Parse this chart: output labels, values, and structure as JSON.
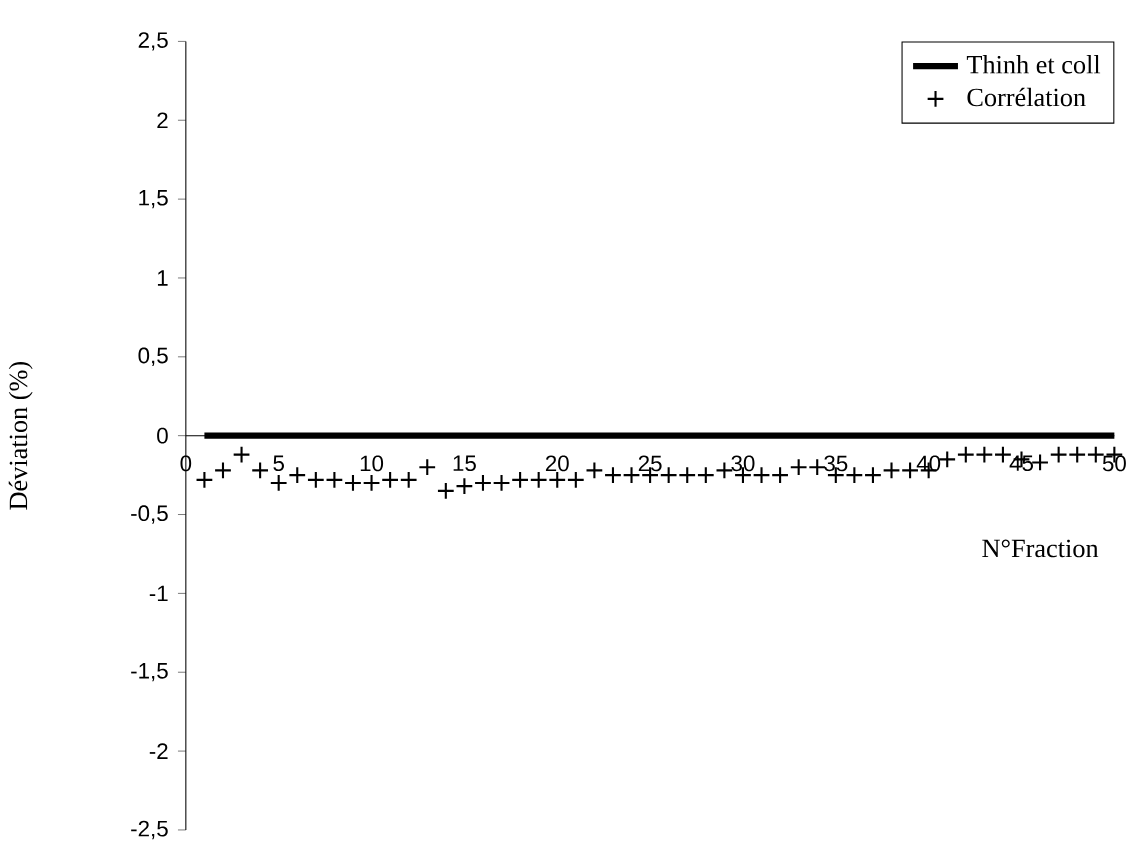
{
  "chart_data": {
    "type": "line",
    "xlabel": "N°Fraction",
    "ylabel": "Déviation (%)",
    "xlim": [
      0,
      50
    ],
    "ylim": [
      -2.5,
      2.5
    ],
    "xticks": [
      0,
      5,
      10,
      15,
      20,
      25,
      30,
      35,
      40,
      45,
      50
    ],
    "yticks": [
      {
        "value": -2.5,
        "label": "-2,5"
      },
      -2,
      {
        "value": -1.5,
        "label": "-1,5"
      },
      -1,
      {
        "value": -0.5,
        "label": "-0,5"
      },
      0,
      {
        "value": 0.5,
        "label": "0,5"
      },
      1,
      {
        "value": 1.5,
        "label": "1,5"
      },
      2,
      {
        "value": 2.5,
        "label": "2,5"
      }
    ],
    "legend": "top right",
    "series": [
      {
        "name": "Thinh et coll",
        "color": "#000000",
        "marker": "none",
        "x": [
          1,
          50
        ],
        "values": [
          0,
          0
        ]
      },
      {
        "name": "Corrélation",
        "type": "scatter",
        "color": "#000000",
        "marker": "cross",
        "x": [
          1,
          2,
          3,
          4,
          5,
          6,
          7,
          8,
          9,
          10,
          11,
          12,
          13,
          14,
          15,
          16,
          17,
          18,
          19,
          20,
          21,
          22,
          23,
          24,
          25,
          26,
          27,
          28,
          29,
          30,
          31,
          32,
          33,
          34,
          35,
          36,
          37,
          38,
          39,
          40,
          41,
          42,
          43,
          44,
          45,
          46,
          47,
          48,
          49,
          50
        ],
        "values": [
          -0.28,
          -0.22,
          -0.12,
          -0.22,
          -0.3,
          -0.25,
          -0.28,
          -0.28,
          -0.3,
          -0.3,
          -0.28,
          -0.28,
          -0.2,
          -0.35,
          -0.32,
          -0.3,
          -0.3,
          -0.28,
          -0.28,
          -0.28,
          -0.28,
          -0.22,
          -0.25,
          -0.25,
          -0.25,
          -0.25,
          -0.25,
          -0.25,
          -0.22,
          -0.25,
          -0.25,
          -0.25,
          -0.2,
          -0.2,
          -0.25,
          -0.25,
          -0.25,
          -0.22,
          -0.22,
          -0.22,
          -0.15,
          -0.12,
          -0.12,
          -0.12,
          -0.15,
          -0.17,
          -0.12,
          -0.12,
          -0.12,
          -0.12
        ]
      }
    ]
  }
}
